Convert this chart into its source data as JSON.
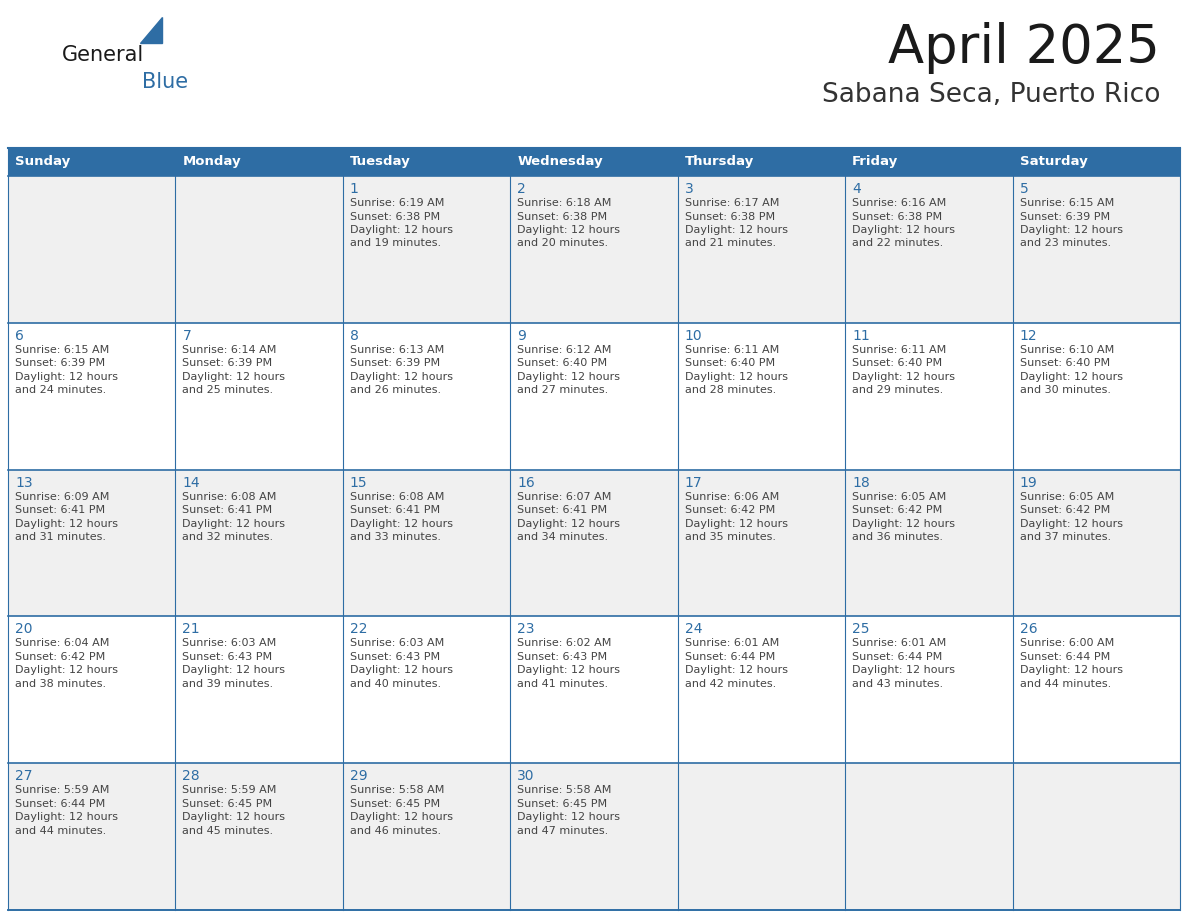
{
  "title": "April 2025",
  "subtitle": "Sabana Seca, Puerto Rico",
  "days_of_week": [
    "Sunday",
    "Monday",
    "Tuesday",
    "Wednesday",
    "Thursday",
    "Friday",
    "Saturday"
  ],
  "header_bg": "#2E6DA4",
  "header_text": "#FFFFFF",
  "cell_bg_odd": "#F0F0F0",
  "cell_bg_even": "#FFFFFF",
  "cell_border": "#2E6DA4",
  "day_num_color": "#2E6DA4",
  "text_color": "#444444",
  "calendar_data": [
    [
      null,
      null,
      {
        "day": 1,
        "sunrise": "6:19 AM",
        "sunset": "6:38 PM",
        "daylight": "12 hours",
        "daylight2": "and 19 minutes."
      },
      {
        "day": 2,
        "sunrise": "6:18 AM",
        "sunset": "6:38 PM",
        "daylight": "12 hours",
        "daylight2": "and 20 minutes."
      },
      {
        "day": 3,
        "sunrise": "6:17 AM",
        "sunset": "6:38 PM",
        "daylight": "12 hours",
        "daylight2": "and 21 minutes."
      },
      {
        "day": 4,
        "sunrise": "6:16 AM",
        "sunset": "6:38 PM",
        "daylight": "12 hours",
        "daylight2": "and 22 minutes."
      },
      {
        "day": 5,
        "sunrise": "6:15 AM",
        "sunset": "6:39 PM",
        "daylight": "12 hours",
        "daylight2": "and 23 minutes."
      }
    ],
    [
      {
        "day": 6,
        "sunrise": "6:15 AM",
        "sunset": "6:39 PM",
        "daylight": "12 hours",
        "daylight2": "and 24 minutes."
      },
      {
        "day": 7,
        "sunrise": "6:14 AM",
        "sunset": "6:39 PM",
        "daylight": "12 hours",
        "daylight2": "and 25 minutes."
      },
      {
        "day": 8,
        "sunrise": "6:13 AM",
        "sunset": "6:39 PM",
        "daylight": "12 hours",
        "daylight2": "and 26 minutes."
      },
      {
        "day": 9,
        "sunrise": "6:12 AM",
        "sunset": "6:40 PM",
        "daylight": "12 hours",
        "daylight2": "and 27 minutes."
      },
      {
        "day": 10,
        "sunrise": "6:11 AM",
        "sunset": "6:40 PM",
        "daylight": "12 hours",
        "daylight2": "and 28 minutes."
      },
      {
        "day": 11,
        "sunrise": "6:11 AM",
        "sunset": "6:40 PM",
        "daylight": "12 hours",
        "daylight2": "and 29 minutes."
      },
      {
        "day": 12,
        "sunrise": "6:10 AM",
        "sunset": "6:40 PM",
        "daylight": "12 hours",
        "daylight2": "and 30 minutes."
      }
    ],
    [
      {
        "day": 13,
        "sunrise": "6:09 AM",
        "sunset": "6:41 PM",
        "daylight": "12 hours",
        "daylight2": "and 31 minutes."
      },
      {
        "day": 14,
        "sunrise": "6:08 AM",
        "sunset": "6:41 PM",
        "daylight": "12 hours",
        "daylight2": "and 32 minutes."
      },
      {
        "day": 15,
        "sunrise": "6:08 AM",
        "sunset": "6:41 PM",
        "daylight": "12 hours",
        "daylight2": "and 33 minutes."
      },
      {
        "day": 16,
        "sunrise": "6:07 AM",
        "sunset": "6:41 PM",
        "daylight": "12 hours",
        "daylight2": "and 34 minutes."
      },
      {
        "day": 17,
        "sunrise": "6:06 AM",
        "sunset": "6:42 PM",
        "daylight": "12 hours",
        "daylight2": "and 35 minutes."
      },
      {
        "day": 18,
        "sunrise": "6:05 AM",
        "sunset": "6:42 PM",
        "daylight": "12 hours",
        "daylight2": "and 36 minutes."
      },
      {
        "day": 19,
        "sunrise": "6:05 AM",
        "sunset": "6:42 PM",
        "daylight": "12 hours",
        "daylight2": "and 37 minutes."
      }
    ],
    [
      {
        "day": 20,
        "sunrise": "6:04 AM",
        "sunset": "6:42 PM",
        "daylight": "12 hours",
        "daylight2": "and 38 minutes."
      },
      {
        "day": 21,
        "sunrise": "6:03 AM",
        "sunset": "6:43 PM",
        "daylight": "12 hours",
        "daylight2": "and 39 minutes."
      },
      {
        "day": 22,
        "sunrise": "6:03 AM",
        "sunset": "6:43 PM",
        "daylight": "12 hours",
        "daylight2": "and 40 minutes."
      },
      {
        "day": 23,
        "sunrise": "6:02 AM",
        "sunset": "6:43 PM",
        "daylight": "12 hours",
        "daylight2": "and 41 minutes."
      },
      {
        "day": 24,
        "sunrise": "6:01 AM",
        "sunset": "6:44 PM",
        "daylight": "12 hours",
        "daylight2": "and 42 minutes."
      },
      {
        "day": 25,
        "sunrise": "6:01 AM",
        "sunset": "6:44 PM",
        "daylight": "12 hours",
        "daylight2": "and 43 minutes."
      },
      {
        "day": 26,
        "sunrise": "6:00 AM",
        "sunset": "6:44 PM",
        "daylight": "12 hours",
        "daylight2": "and 44 minutes."
      }
    ],
    [
      {
        "day": 27,
        "sunrise": "5:59 AM",
        "sunset": "6:44 PM",
        "daylight": "12 hours",
        "daylight2": "and 44 minutes."
      },
      {
        "day": 28,
        "sunrise": "5:59 AM",
        "sunset": "6:45 PM",
        "daylight": "12 hours",
        "daylight2": "and 45 minutes."
      },
      {
        "day": 29,
        "sunrise": "5:58 AM",
        "sunset": "6:45 PM",
        "daylight": "12 hours",
        "daylight2": "and 46 minutes."
      },
      {
        "day": 30,
        "sunrise": "5:58 AM",
        "sunset": "6:45 PM",
        "daylight": "12 hours",
        "daylight2": "and 47 minutes."
      },
      null,
      null,
      null
    ]
  ]
}
